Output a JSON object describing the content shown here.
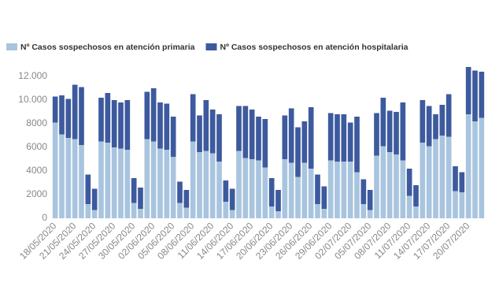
{
  "chart_data": {
    "type": "stacked_bar",
    "categories": [
      "18/05/2020",
      null,
      null,
      "21/05/2020",
      null,
      null,
      "24/05/2020",
      null,
      null,
      "27/05/2020",
      null,
      null,
      "30/05/2020",
      null,
      null,
      "02/06/2020",
      null,
      null,
      "05/06/2020",
      null,
      null,
      "08/06/2020",
      null,
      null,
      "11/06/2020",
      null,
      null,
      "14/06/2020",
      null,
      null,
      "17/06/2020",
      null,
      null,
      "20/06/2020",
      null,
      null,
      "23/06/2020",
      null,
      null,
      "26/06/2020",
      null,
      null,
      "29/06/2020",
      null,
      null,
      "02/07/2020",
      null,
      null,
      "05/07/2020",
      null,
      null,
      "08/07/2020",
      null,
      null,
      "11/07/2020",
      null,
      null,
      "14/07/2020",
      null,
      null,
      "17/07/2020",
      null,
      null,
      "20/07/2020",
      null,
      null
    ],
    "series": [
      {
        "name": "Nº Casos sospechosos en atención primaria",
        "color": "#a9c4de",
        "values": [
          8100,
          7100,
          6800,
          6700,
          6200,
          1200,
          700,
          6500,
          6400,
          6000,
          5900,
          5800,
          1300,
          800,
          6700,
          6500,
          5900,
          5800,
          5200,
          1300,
          900,
          6500,
          5600,
          5700,
          5500,
          4800,
          1400,
          700,
          5700,
          5100,
          5000,
          4900,
          4300,
          1000,
          600,
          5000,
          4700,
          3500,
          4700,
          4200,
          1200,
          800,
          4900,
          4800,
          4800,
          4800,
          3900,
          1200,
          700,
          5300,
          6100,
          5600,
          5400,
          4900,
          1900,
          1000,
          6400,
          6100,
          6700,
          7000,
          6900,
          2300,
          2200,
          8800,
          8200,
          8500
        ]
      },
      {
        "name": "Nº Casos sospechosos en atención hospitalaria",
        "color": "#3d5a9e",
        "values": [
          2200,
          3300,
          3300,
          4600,
          4900,
          2500,
          1800,
          3700,
          4200,
          4000,
          3900,
          4200,
          2100,
          1800,
          4000,
          4500,
          3900,
          3900,
          3400,
          1800,
          1500,
          4000,
          3100,
          4300,
          3700,
          4000,
          1800,
          1800,
          3800,
          4400,
          4200,
          3700,
          4100,
          2400,
          1800,
          3700,
          4600,
          4200,
          3500,
          5200,
          2500,
          1900,
          4000,
          4000,
          4000,
          3300,
          4700,
          2100,
          1700,
          3600,
          4100,
          3500,
          3600,
          4900,
          2300,
          1800,
          3600,
          3400,
          2100,
          2600,
          3600,
          2100,
          1700,
          4000,
          4300,
          3900
        ]
      }
    ],
    "ylim": [
      0,
      13000
    ],
    "yticks": [
      0,
      {
        "value": 2000,
        "label": "2000"
      },
      {
        "value": 4000,
        "label": "4000"
      },
      {
        "value": 6000,
        "label": "6000"
      },
      {
        "value": 8000,
        "label": "8000"
      },
      {
        "value": 10000,
        "label": "10.000"
      },
      {
        "value": 12000,
        "label": "12.000"
      }
    ],
    "legend": "top-left"
  }
}
